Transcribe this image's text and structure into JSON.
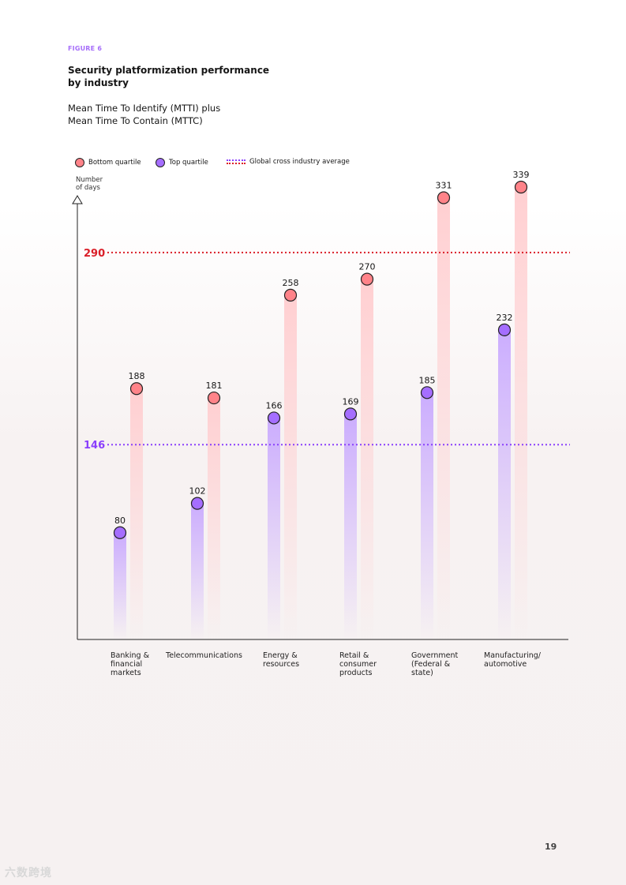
{
  "figure_label": "FIGURE 6",
  "title": "Security platformization performance by industry",
  "subtitle_line1": "Mean Time To Identify (MTTI) plus",
  "subtitle_line2": "Mean Time To Contain (MTTC)",
  "legend": {
    "bottom": "Bottom quartile",
    "top": "Top quartile",
    "average": "Global cross industry average"
  },
  "y_axis_label_line1": "Number",
  "y_axis_label_line2": "of days",
  "page_number": "19",
  "watermark": "六数跨境",
  "colors": {
    "bottom_quartile": "#ff8389",
    "top_quartile": "#a56eff",
    "bottom_bar": "#ffd6d8",
    "top_bar": "#d4bbff",
    "ref_bottom": "#da1e28",
    "ref_top": "#8a3ffc",
    "label_top_line": "#8a3ffc",
    "label_bottom_line": "#da1e28"
  },
  "chart_data": {
    "type": "dot-bar",
    "title": "Security platformization performance by industry",
    "ylabel": "Number of days",
    "ylim": [
      0,
      340
    ],
    "categories": [
      [
        "Banking &",
        "financial",
        "markets"
      ],
      [
        "Telecommunications"
      ],
      [
        "Energy &",
        "resources"
      ],
      [
        "Retail &",
        "consumer",
        "products"
      ],
      [
        "Government",
        "(Federal &",
        "state)"
      ],
      [
        "Manufacturing/",
        "automotive"
      ]
    ],
    "series": [
      {
        "name": "Top quartile",
        "values": [
          80,
          102,
          166,
          169,
          185,
          232
        ]
      },
      {
        "name": "Bottom quartile",
        "values": [
          188,
          181,
          258,
          270,
          331,
          339
        ]
      }
    ],
    "reference_lines": [
      {
        "name": "Global cross industry average (bottom quartile)",
        "value": 290,
        "label": "290"
      },
      {
        "name": "Global cross industry average (top quartile)",
        "value": 146,
        "label": "146"
      }
    ]
  }
}
